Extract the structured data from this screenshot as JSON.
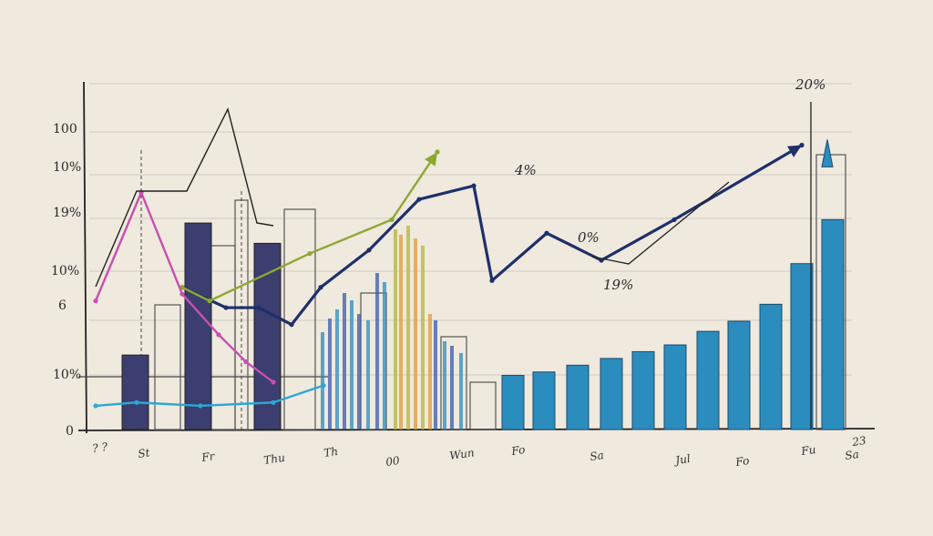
{
  "chart_data": {
    "type": "bar",
    "title": "",
    "xlabel": "",
    "ylabel": "",
    "grid": true,
    "y_tick_labels": [
      "100",
      "10%",
      "19%",
      "10%",
      "6",
      "10%",
      "0"
    ],
    "callouts": [
      "4%",
      "0%",
      "19%",
      "20%"
    ],
    "x_scrawls": [
      "? ?",
      "St",
      "Fr",
      "Thu",
      "Th",
      "00",
      "Wun",
      "Fo",
      "Sa",
      "Jul",
      "Fo",
      "Fu",
      "Sa",
      "23"
    ],
    "series": [
      {
        "name": "",
        "style": "bar",
        "color": "#3b3e6e",
        "values": [
          22,
          61,
          55
        ]
      },
      {
        "name": "",
        "style": "bar",
        "color": "#2b8cbe",
        "values": [
          16,
          17,
          19,
          21,
          23,
          25,
          29,
          32,
          37,
          49,
          62
        ]
      },
      {
        "name": "",
        "style": "line",
        "color": "#1f2f6b",
        "values": [
          42,
          36,
          36,
          31,
          42,
          53,
          68,
          72,
          44,
          58,
          50,
          62,
          84
        ]
      },
      {
        "name": "",
        "style": "line",
        "color": "#8ea832",
        "values": [
          42,
          38,
          52,
          62,
          82
        ]
      },
      {
        "name": "",
        "style": "line",
        "color": "#2aa8d6",
        "values": [
          7,
          8,
          7,
          8,
          13
        ]
      },
      {
        "name": "",
        "style": "line",
        "color": "#c94fb0",
        "values": [
          38,
          70,
          40,
          28,
          20,
          14
        ]
      }
    ]
  }
}
